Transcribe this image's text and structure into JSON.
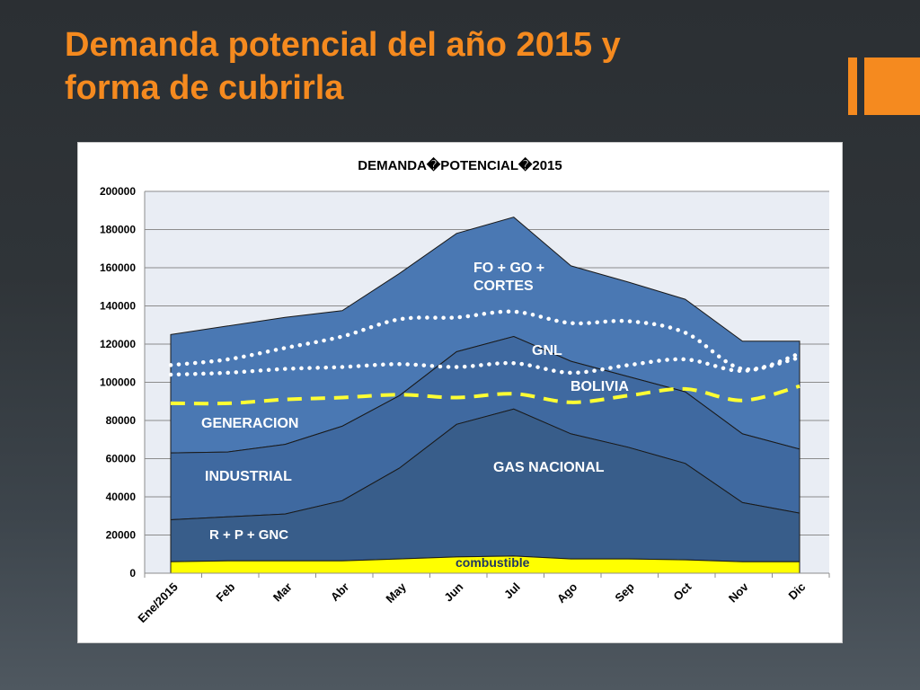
{
  "slide": {
    "title_line1": "Demanda potencial del año 2015 y",
    "title_line2": "forma de cubrirla",
    "accent_color": "#f58a1f"
  },
  "chart_data": {
    "type": "area",
    "title": "DEMANDA�POTENCIAL�2015",
    "categories": [
      "Ene/2015",
      "Feb",
      "Mar",
      "Abr",
      "May",
      "Jun",
      "Jul",
      "Ago",
      "Sep",
      "Oct",
      "Nov",
      "Dic"
    ],
    "ylim": [
      0,
      200000
    ],
    "yticks": [
      "0",
      "20000",
      "40000",
      "60000",
      "80000",
      "100000",
      "120000",
      "140000",
      "160000",
      "180000",
      "200000"
    ],
    "grid": true,
    "plot_background": "#e9edf4",
    "stacked_areas": [
      {
        "label": "combustible",
        "color": "#ffff00",
        "top": [
          6000,
          6500,
          6500,
          6500,
          7500,
          8500,
          9000,
          7500,
          7500,
          7000,
          6000,
          6000
        ]
      },
      {
        "label": "R + P + GNC",
        "color": "#385d8a",
        "top": [
          28000,
          29500,
          31000,
          38000,
          55000,
          78000,
          86000,
          73000,
          66000,
          57500,
          37000,
          31500
        ]
      },
      {
        "label": "INDUSTRIAL",
        "color": "#3f69a0",
        "top": [
          63000,
          63500,
          67500,
          77000,
          93000,
          116000,
          124000,
          111000,
          103000,
          95000,
          73000,
          65000
        ]
      },
      {
        "label": "GENERACION",
        "color": "#4a78b3",
        "top": [
          125000,
          129500,
          134000,
          137500,
          157000,
          178000,
          186500,
          161000,
          152500,
          143500,
          121500,
          121500
        ]
      }
    ],
    "area_labels": [
      {
        "text": "GAS NACIONAL",
        "color": "#ffffff"
      },
      {
        "text": "FO + GO +",
        "color": "#ffffff"
      },
      {
        "text": "CORTES",
        "color": "#ffffff"
      },
      {
        "text": "GNL",
        "color": "#ffffff"
      },
      {
        "text": "BOLIVIA",
        "color": "#ffffff"
      }
    ],
    "overlay_lines": [
      {
        "name": "FO + GO + CORTES",
        "style": "dotted",
        "color": "#ffffff",
        "values": [
          109000,
          112000,
          118000,
          124000,
          133000,
          134000,
          137000,
          131000,
          132000,
          126000,
          107000,
          115000
        ]
      },
      {
        "name": "GNL",
        "style": "dotted",
        "color": "#ffffff",
        "values": [
          104000,
          105000,
          107000,
          108000,
          109500,
          108000,
          110000,
          105000,
          109000,
          112000,
          106000,
          113000
        ]
      },
      {
        "name": "BOLIVIA",
        "style": "dashed",
        "color": "#ffff33",
        "values": [
          89000,
          89000,
          91000,
          92000,
          93500,
          92000,
          94000,
          89500,
          93000,
          96500,
          90500,
          98000
        ]
      }
    ]
  }
}
